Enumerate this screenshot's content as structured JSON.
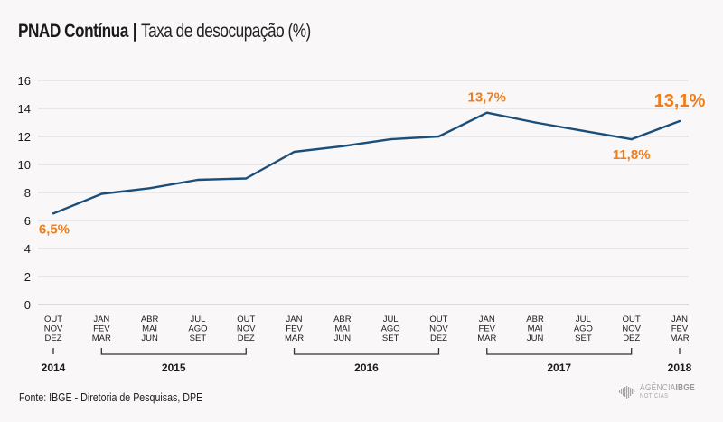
{
  "header": {
    "title": "PNAD Contínua",
    "separator": "|",
    "subtitle": "Taxa de desocupação (%)"
  },
  "footer": {
    "source": "Fonte: IBGE - Diretoria de Pesquisas, DPE",
    "logo_line1_a": "AGÊNCIA",
    "logo_line1_b": "IBGE",
    "logo_line2": "NOTÍCIAS"
  },
  "colors": {
    "line": "#1b4f7a",
    "annotation": "#ef7d1a",
    "grid": "#e3e1e2",
    "axis_text": "#1a1a1a"
  },
  "chart_data": {
    "type": "line",
    "title": "PNAD Contínua | Taxa de desocupação (%)",
    "xlabel": "",
    "ylabel": "",
    "ylim": [
      0,
      16
    ],
    "yticks": [
      0,
      2,
      4,
      6,
      8,
      10,
      12,
      14,
      16
    ],
    "grid": true,
    "categories": [
      [
        "OUT",
        "NOV",
        "DEZ"
      ],
      [
        "JAN",
        "FEV",
        "MAR"
      ],
      [
        "ABR",
        "MAI",
        "JUN"
      ],
      [
        "JUL",
        "AGO",
        "SET"
      ],
      [
        "OUT",
        "NOV",
        "DEZ"
      ],
      [
        "JAN",
        "FEV",
        "MAR"
      ],
      [
        "ABR",
        "MAI",
        "JUN"
      ],
      [
        "JUL",
        "AGO",
        "SET"
      ],
      [
        "OUT",
        "NOV",
        "DEZ"
      ],
      [
        "JAN",
        "FEV",
        "MAR"
      ],
      [
        "ABR",
        "MAI",
        "JUN"
      ],
      [
        "JUL",
        "AGO",
        "SET"
      ],
      [
        "OUT",
        "NOV",
        "DEZ"
      ],
      [
        "JAN",
        "FEV",
        "MAR"
      ]
    ],
    "series": [
      {
        "name": "Taxa de desocupação (%)",
        "values": [
          6.5,
          7.9,
          8.3,
          8.9,
          9.0,
          10.9,
          11.3,
          11.8,
          12.0,
          13.7,
          13.0,
          12.4,
          11.8,
          13.1
        ]
      }
    ],
    "years": [
      {
        "label": "2014",
        "from": 0,
        "to": 0
      },
      {
        "label": "2015",
        "from": 1,
        "to": 4
      },
      {
        "label": "2016",
        "from": 5,
        "to": 8
      },
      {
        "label": "2017",
        "from": 9,
        "to": 12
      },
      {
        "label": "2018",
        "from": 13,
        "to": 13
      }
    ],
    "annotations": [
      {
        "index": 0,
        "text": "6,5%",
        "position": "below",
        "size": "normal"
      },
      {
        "index": 9,
        "text": "13,7%",
        "position": "above",
        "size": "normal"
      },
      {
        "index": 12,
        "text": "11,8%",
        "position": "below",
        "size": "normal"
      },
      {
        "index": 13,
        "text": "13,1%",
        "position": "above",
        "size": "large"
      }
    ]
  }
}
